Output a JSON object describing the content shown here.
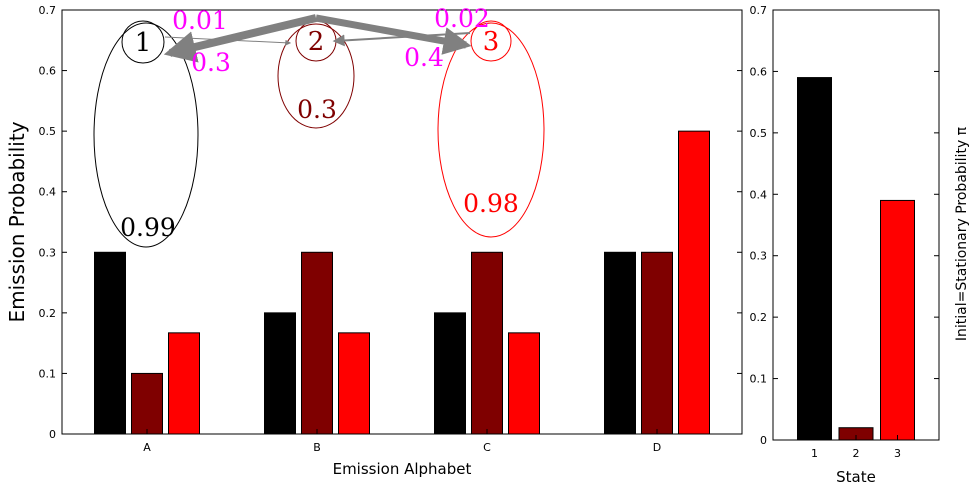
{
  "chart_data": [
    {
      "type": "bar",
      "title": "",
      "xlabel": "Emission Alphabet",
      "ylabel": "Emission Probability",
      "categories": [
        "A",
        "B",
        "C",
        "D"
      ],
      "ylim": [
        0,
        0.7
      ],
      "yticks": [
        "0",
        "0.1",
        "0.2",
        "0.3",
        "0.4",
        "0.5",
        "0.6",
        "0.7"
      ],
      "grid": false,
      "series": [
        {
          "color": "#000000",
          "values": [
            0.3,
            0.2,
            0.2,
            0.3
          ]
        },
        {
          "color": "#7f0000",
          "values": [
            0.1,
            0.3,
            0.3,
            0.3
          ]
        },
        {
          "color": "#ff0000",
          "values": [
            0.167,
            0.167,
            0.167,
            0.5
          ]
        }
      ],
      "annotations": {
        "states": [
          {
            "label": "1",
            "self_prob": "0.99",
            "color": "#000000"
          },
          {
            "label": "2",
            "self_prob": "0.3",
            "color": "#7f0000"
          },
          {
            "label": "3",
            "self_prob": "0.98",
            "color": "#ff0000"
          }
        ],
        "transitions": [
          {
            "from": "1",
            "to": "2",
            "label": "0.01"
          },
          {
            "from": "2",
            "to": "1",
            "label": "0.3"
          },
          {
            "from": "2",
            "to": "3",
            "label": "0.4"
          },
          {
            "from": "3",
            "to": "2",
            "label": "0.02"
          }
        ],
        "transition_label_color": "#ff00ff",
        "arrow_color": "#808080"
      }
    },
    {
      "type": "bar",
      "title": "",
      "xlabel": "State",
      "ylabel": "Initial=Stationary Probability π",
      "categories": [
        "1",
        "2",
        "3"
      ],
      "values": [
        0.59,
        0.02,
        0.39
      ],
      "colors": [
        "#000000",
        "#7f0000",
        "#ff0000"
      ],
      "ylim": [
        0,
        0.7
      ],
      "yticks": [
        "0",
        "0.1",
        "0.2",
        "0.3",
        "0.4",
        "0.5",
        "0.6",
        "0.7"
      ],
      "grid": false
    }
  ]
}
